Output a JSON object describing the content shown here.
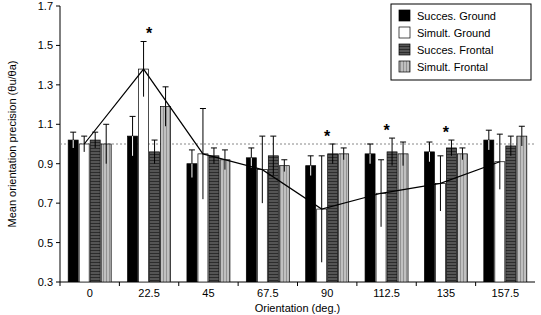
{
  "chart_data": {
    "type": "bar",
    "x_label": "Orientation (deg.)",
    "y_label": "Mean orientation precision (θu/θa)",
    "categories": [
      "0",
      "22.5",
      "45",
      "67.5",
      "90",
      "112.5",
      "135",
      "157.5"
    ],
    "series": [
      {
        "name": "Succes. Ground",
        "color": "#000000",
        "values": [
          1.02,
          1.04,
          0.9,
          0.93,
          0.89,
          0.95,
          0.96,
          1.02
        ],
        "errors": [
          0.04,
          0.1,
          0.07,
          0.05,
          0.05,
          0.05,
          0.05,
          0.05
        ]
      },
      {
        "name": "Simult. Ground",
        "color": "#ffffff",
        "line_style": "solid",
        "values": [
          1.0,
          1.38,
          0.95,
          0.87,
          0.67,
          0.75,
          0.8,
          0.91
        ],
        "errors": [
          0.04,
          0.14,
          0.23,
          0.17,
          0.27,
          0.17,
          0.14,
          0.14
        ]
      },
      {
        "name": "Succes. Frontal",
        "color": "#555555",
        "marker": "hatch",
        "values": [
          1.02,
          0.96,
          0.94,
          0.94,
          0.95,
          0.96,
          0.98,
          0.99
        ],
        "errors": [
          0.04,
          0.06,
          0.04,
          0.1,
          0.05,
          0.07,
          0.04,
          0.05
        ]
      },
      {
        "name": "Simult. Frontal",
        "color": "#c0c0c0",
        "marker": "hatch",
        "values": [
          1.0,
          1.19,
          0.92,
          0.89,
          0.95,
          0.95,
          0.95,
          1.04
        ],
        "errors": [
          0.1,
          0.1,
          0.05,
          0.03,
          0.03,
          0.06,
          0.03,
          0.05
        ]
      }
    ],
    "reference_line": 1,
    "annotations": [
      {
        "text": "*",
        "category": "22.5"
      },
      {
        "text": "*",
        "category": "90"
      },
      {
        "text": "*",
        "category": "112.5"
      },
      {
        "text": "*",
        "category": "135"
      }
    ],
    "ylim": [
      0.3,
      1.7
    ],
    "yticks": [
      0.3,
      0.5,
      0.7,
      0.9,
      1.1,
      1.3,
      1.5,
      1.7
    ],
    "legend": "top-right",
    "grid": false
  }
}
